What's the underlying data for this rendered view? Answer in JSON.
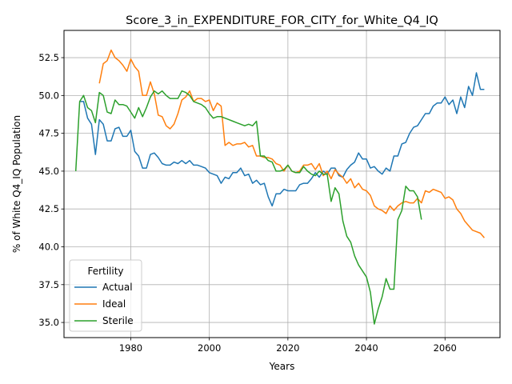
{
  "chart_data": {
    "type": "line",
    "title": "Score_3_in_EXPENDITURE_FOR_CITY_for_White_Q4_IQ",
    "xlabel": "Years",
    "ylabel": "% of White Q4_IQ Population",
    "xlim": [
      1963,
      2074
    ],
    "ylim": [
      34.0,
      54.3
    ],
    "xticks": [
      1980,
      2000,
      2020,
      2040,
      2060
    ],
    "yticks": [
      35.0,
      37.5,
      40.0,
      42.5,
      45.0,
      47.5,
      50.0,
      52.5
    ],
    "grid": true,
    "legend": {
      "title": "Fertility",
      "position": "lower-left"
    },
    "series": [
      {
        "name": "Actual",
        "color": "#1f77b4",
        "x": [
          1967,
          1968,
          1969,
          1970,
          1971,
          1972,
          1973,
          1974,
          1975,
          1976,
          1977,
          1978,
          1979,
          1980,
          1981,
          1982,
          1983,
          1984,
          1985,
          1986,
          1987,
          1988,
          1989,
          1990,
          1991,
          1992,
          1993,
          1994,
          1995,
          1996,
          1997,
          1998,
          1999,
          2000,
          2001,
          2002,
          2003,
          2004,
          2005,
          2006,
          2007,
          2008,
          2009,
          2010,
          2011,
          2012,
          2013,
          2014,
          2015,
          2016,
          2017,
          2018,
          2019,
          2020,
          2021,
          2022,
          2023,
          2024,
          2025,
          2026,
          2027,
          2028,
          2029,
          2030,
          2031,
          2032,
          2033,
          2034,
          2035,
          2036,
          2037,
          2038,
          2039,
          2040,
          2041,
          2042,
          2043,
          2044,
          2045,
          2046,
          2047,
          2048,
          2049,
          2050,
          2051,
          2052,
          2053,
          2054,
          2055,
          2056,
          2057,
          2058,
          2059,
          2060,
          2061,
          2062,
          2063,
          2064,
          2065,
          2066,
          2067,
          2068,
          2069,
          2070
        ],
        "values": [
          49.6,
          49.6,
          48.5,
          48.1,
          46.1,
          48.4,
          48.1,
          47.0,
          47.0,
          47.8,
          47.9,
          47.3,
          47.3,
          47.7,
          46.3,
          46.0,
          45.2,
          45.2,
          46.1,
          46.2,
          45.9,
          45.5,
          45.4,
          45.4,
          45.6,
          45.5,
          45.7,
          45.5,
          45.7,
          45.4,
          45.4,
          45.3,
          45.2,
          44.9,
          44.8,
          44.7,
          44.2,
          44.6,
          44.5,
          44.9,
          44.9,
          45.2,
          44.7,
          44.8,
          44.2,
          44.4,
          44.1,
          44.2,
          43.3,
          42.7,
          43.5,
          43.5,
          43.8,
          43.7,
          43.7,
          43.7,
          44.1,
          44.2,
          44.2,
          44.5,
          44.9,
          44.6,
          45.0,
          44.8,
          45.2,
          45.2,
          44.7,
          44.6,
          45.1,
          45.4,
          45.6,
          46.2,
          45.8,
          45.8,
          45.2,
          45.3,
          45.0,
          44.8,
          45.2,
          45.0,
          46.0,
          46.0,
          46.8,
          46.9,
          47.5,
          47.9,
          48.0,
          48.4,
          48.8,
          48.8,
          49.3,
          49.5,
          49.5,
          49.9,
          49.4,
          49.7,
          48.8,
          49.9,
          49.2,
          50.6,
          50.0,
          51.5,
          50.4,
          50.4
        ]
      },
      {
        "name": "Ideal",
        "color": "#ff7f0e",
        "x": [
          1972,
          1973,
          1974,
          1975,
          1976,
          1977,
          1978,
          1979,
          1980,
          1981,
          1982,
          1983,
          1984,
          1985,
          1986,
          1987,
          1988,
          1989,
          1990,
          1991,
          1992,
          1993,
          1994,
          1995,
          1996,
          1997,
          1998,
          1999,
          2000,
          2001,
          2002,
          2003,
          2004,
          2005,
          2006,
          2007,
          2008,
          2009,
          2010,
          2011,
          2012,
          2013,
          2014,
          2015,
          2016,
          2017,
          2018,
          2019,
          2020,
          2021,
          2022,
          2023,
          2024,
          2025,
          2026,
          2027,
          2028,
          2029,
          2030,
          2031,
          2032,
          2033,
          2034,
          2035,
          2036,
          2037,
          2038,
          2039,
          2040,
          2041,
          2042,
          2043,
          2044,
          2045,
          2046,
          2047,
          2048,
          2049,
          2050,
          2051,
          2052,
          2053,
          2054,
          2055,
          2056,
          2057,
          2058,
          2059,
          2060,
          2061,
          2062,
          2063,
          2064,
          2065,
          2066,
          2067,
          2068,
          2069,
          2070
        ],
        "values": [
          50.8,
          52.1,
          52.3,
          53.0,
          52.5,
          52.3,
          52.0,
          51.6,
          52.4,
          51.9,
          51.6,
          50.0,
          50.0,
          50.9,
          50.1,
          48.7,
          48.6,
          48.0,
          47.8,
          48.1,
          48.8,
          49.7,
          49.9,
          50.3,
          49.6,
          49.8,
          49.8,
          49.6,
          49.7,
          49.0,
          49.5,
          49.3,
          46.7,
          46.9,
          46.7,
          46.8,
          46.8,
          46.9,
          46.6,
          46.7,
          46.0,
          46.0,
          45.9,
          45.9,
          45.8,
          45.5,
          45.4,
          45.0,
          45.4,
          45.0,
          44.9,
          45.0,
          45.4,
          45.4,
          45.5,
          45.1,
          45.5,
          44.7,
          45.0,
          44.5,
          45.1,
          44.8,
          44.6,
          44.2,
          44.5,
          43.9,
          44.2,
          43.8,
          43.7,
          43.4,
          42.7,
          42.5,
          42.4,
          42.2,
          42.7,
          42.4,
          42.7,
          42.9,
          43.0,
          42.9,
          42.9,
          43.2,
          42.9,
          43.7,
          43.6,
          43.8,
          43.7,
          43.6,
          43.2,
          43.3,
          43.1,
          42.5,
          42.2,
          41.7,
          41.4,
          41.1,
          41.0,
          40.9,
          40.6
        ]
      },
      {
        "name": "Sterile",
        "color": "#2ca02c",
        "x": [
          1966,
          1967,
          1968,
          1969,
          1970,
          1971,
          1972,
          1973,
          1974,
          1975,
          1976,
          1977,
          1978,
          1979,
          1980,
          1981,
          1982,
          1983,
          1984,
          1985,
          1986,
          1987,
          1988,
          1989,
          1990,
          1991,
          1992,
          1993,
          1994,
          1995,
          1996,
          1997,
          1998,
          1999,
          2000,
          2001,
          2002,
          2003,
          2004,
          2005,
          2006,
          2007,
          2008,
          2009,
          2010,
          2011,
          2012,
          2013,
          2014,
          2015,
          2016,
          2017,
          2018,
          2019,
          2020,
          2021,
          2022,
          2023,
          2024,
          2025,
          2026,
          2027,
          2028,
          2029,
          2030,
          2031,
          2032,
          2033,
          2034,
          2035,
          2036,
          2037,
          2038,
          2039,
          2040,
          2041,
          2042,
          2043,
          2044,
          2045,
          2046,
          2047,
          2048,
          2049,
          2050,
          2051,
          2052,
          2053,
          2054
        ],
        "values": [
          45.0,
          49.6,
          50.0,
          49.2,
          49.0,
          48.2,
          50.2,
          50.0,
          48.9,
          48.8,
          49.7,
          49.4,
          49.4,
          49.3,
          48.9,
          48.5,
          49.2,
          48.6,
          49.2,
          49.9,
          50.3,
          50.1,
          50.3,
          50.0,
          49.8,
          49.8,
          49.8,
          50.3,
          50.2,
          50.0,
          49.6,
          49.5,
          49.4,
          49.2,
          48.8,
          48.5,
          48.6,
          48.6,
          48.5,
          48.4,
          48.3,
          48.2,
          48.1,
          48.0,
          48.1,
          48.0,
          48.3,
          46.0,
          46.0,
          45.7,
          45.6,
          45.0,
          45.0,
          45.1,
          45.4,
          45.0,
          44.9,
          44.9,
          45.3,
          45.0,
          44.8,
          44.7,
          45.0,
          44.8,
          44.8,
          43.0,
          43.9,
          43.5,
          41.7,
          40.7,
          40.3,
          39.4,
          38.8,
          38.4,
          38.0,
          37.0,
          34.9,
          35.9,
          36.7,
          37.9,
          37.2,
          37.2,
          41.8,
          42.4,
          44.0,
          43.7,
          43.7,
          43.3,
          41.8
        ]
      }
    ]
  }
}
